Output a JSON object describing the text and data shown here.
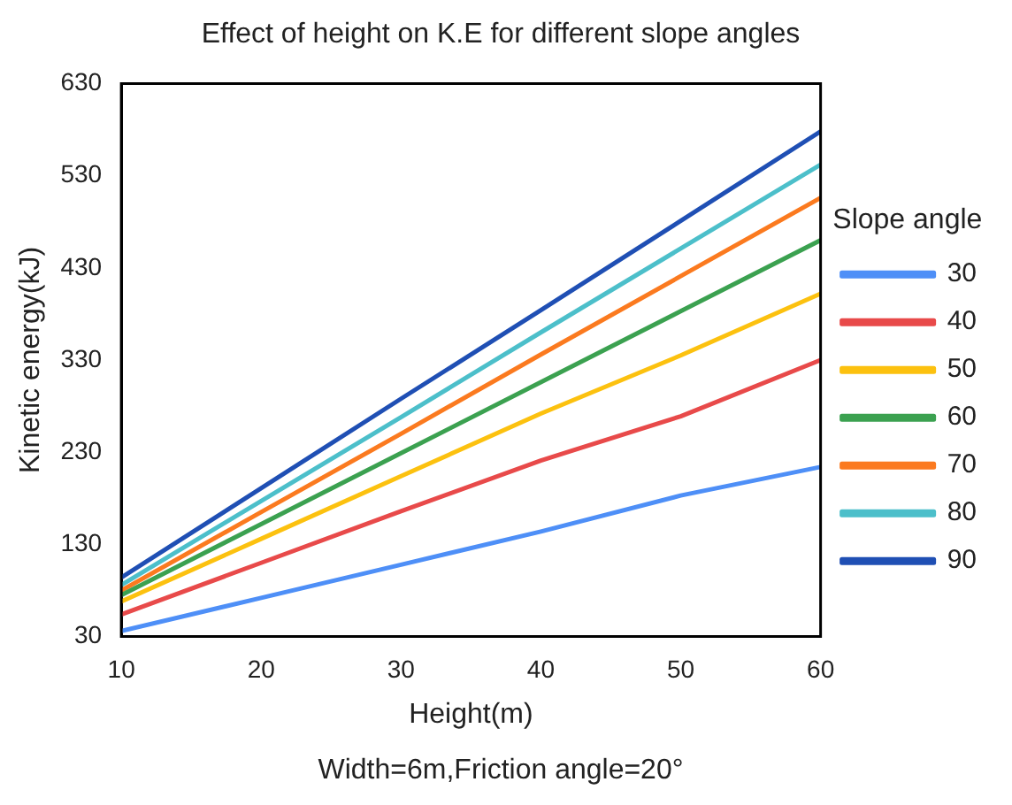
{
  "chart_data": {
    "type": "line",
    "title": "Effect of height on K.E for different slope angles",
    "xlabel": "Height(m)",
    "ylabel": "Kinetic energy(kJ)",
    "legend_title": "Slope angle",
    "annotations": [
      "Width=6m,Friction angle=20°"
    ],
    "x": [
      10,
      20,
      30,
      40,
      50,
      60
    ],
    "series": [
      {
        "name": "30",
        "color": "#4e8ff7",
        "values": [
          36,
          72,
          108,
          144,
          183,
          214
        ]
      },
      {
        "name": "40",
        "color": "#e84a4a",
        "values": [
          54,
          110,
          166,
          221,
          269,
          330
        ]
      },
      {
        "name": "50",
        "color": "#fcc10f",
        "values": [
          68,
          136,
          204,
          272,
          335,
          402
        ]
      },
      {
        "name": "60",
        "color": "#3ba150",
        "values": [
          75,
          152,
          229,
          306,
          383,
          460
        ]
      },
      {
        "name": "70",
        "color": "#fb7a1f",
        "values": [
          80,
          165,
          250,
          336,
          421,
          506
        ]
      },
      {
        "name": "80",
        "color": "#4cbfca",
        "values": [
          86,
          177,
          268,
          360,
          451,
          542
        ]
      },
      {
        "name": "90",
        "color": "#1f4fb4",
        "values": [
          94,
          191,
          288,
          384,
          481,
          578
        ]
      }
    ],
    "xlim": [
      10,
      60
    ],
    "xticks": [
      10,
      20,
      30,
      40,
      50,
      60
    ],
    "ylim": [
      30,
      630
    ],
    "yticks": [
      30,
      130,
      230,
      330,
      430,
      530,
      630
    ],
    "grid": false,
    "legend": "right",
    "marker": "none",
    "line_style": "solid"
  }
}
